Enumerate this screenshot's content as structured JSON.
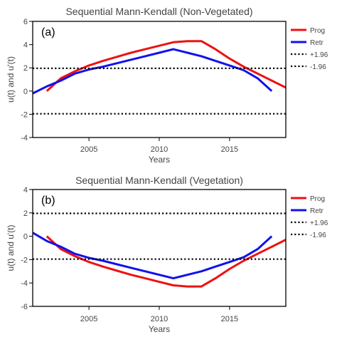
{
  "chart_data": [
    {
      "type": "line",
      "title": "Sequential Mann-Kendall (Non-Vegetated)",
      "panel_label": "(a)",
      "xlabel": "Years",
      "ylabel": "u(t) and u'(t)",
      "xlim": [
        2001,
        2019
      ],
      "ylim": [
        -4,
        6
      ],
      "xticks": [
        2005,
        2010,
        2015
      ],
      "yticks": [
        -4,
        -2,
        0,
        2,
        4,
        6
      ],
      "legend_position": "right",
      "series": [
        {
          "name": "Prog",
          "color": "#ee1111",
          "style": "solid",
          "x": [
            2002,
            2003,
            2004,
            2005,
            2006,
            2007,
            2008,
            2009,
            2010,
            2011,
            2012,
            2013,
            2014,
            2015,
            2016,
            2017,
            2018,
            2019
          ],
          "y": [
            0.0,
            1.1,
            1.7,
            2.2,
            2.6,
            2.95,
            3.3,
            3.6,
            3.9,
            4.2,
            4.3,
            4.3,
            3.6,
            2.8,
            2.1,
            1.5,
            0.9,
            0.3
          ]
        },
        {
          "name": "Retr",
          "color": "#1111ee",
          "style": "solid",
          "x": [
            2001,
            2002,
            2003,
            2004,
            2005,
            2006,
            2007,
            2008,
            2009,
            2010,
            2011,
            2012,
            2013,
            2014,
            2015,
            2016,
            2017,
            2018
          ],
          "y": [
            -0.2,
            0.4,
            0.9,
            1.5,
            1.85,
            2.1,
            2.4,
            2.7,
            3.0,
            3.3,
            3.6,
            3.3,
            3.0,
            2.6,
            2.2,
            1.8,
            1.1,
            0.0
          ]
        },
        {
          "name": "+1.96",
          "color": "#000000",
          "style": "dotted",
          "x": [
            2001,
            2019
          ],
          "y": [
            1.96,
            1.96
          ]
        },
        {
          "name": "-1.96",
          "color": "#000000",
          "style": "dotted",
          "x": [
            2001,
            2019
          ],
          "y": [
            -1.96,
            -1.96
          ]
        }
      ]
    },
    {
      "type": "line",
      "title": "Sequential Mann-Kendall (Vegetation)",
      "panel_label": "(b)",
      "xlabel": "Years",
      "ylabel": "u(t) and u'(t)",
      "xlim": [
        2001,
        2019
      ],
      "ylim": [
        -6,
        4
      ],
      "xticks": [
        2005,
        2010,
        2015
      ],
      "yticks": [
        -6,
        -4,
        -2,
        0,
        2,
        4
      ],
      "legend_position": "right",
      "series": [
        {
          "name": "Prog",
          "color": "#ee1111",
          "style": "solid",
          "x": [
            2002,
            2003,
            2004,
            2005,
            2006,
            2007,
            2008,
            2009,
            2010,
            2011,
            2012,
            2013,
            2014,
            2015,
            2016,
            2017,
            2018,
            2019
          ],
          "y": [
            0.0,
            -1.1,
            -1.7,
            -2.2,
            -2.6,
            -2.95,
            -3.3,
            -3.6,
            -3.9,
            -4.2,
            -4.3,
            -4.3,
            -3.6,
            -2.8,
            -2.1,
            -1.5,
            -0.9,
            -0.3
          ]
        },
        {
          "name": "Retr",
          "color": "#1111ee",
          "style": "solid",
          "x": [
            2001,
            2002,
            2003,
            2004,
            2005,
            2006,
            2007,
            2008,
            2009,
            2010,
            2011,
            2012,
            2013,
            2014,
            2015,
            2016,
            2017,
            2018
          ],
          "y": [
            0.3,
            -0.4,
            -0.9,
            -1.5,
            -1.85,
            -2.1,
            -2.4,
            -2.7,
            -3.0,
            -3.3,
            -3.6,
            -3.3,
            -3.0,
            -2.6,
            -2.2,
            -1.8,
            -1.1,
            0.0
          ]
        },
        {
          "name": "+1.96",
          "color": "#000000",
          "style": "dotted",
          "x": [
            2001,
            2019
          ],
          "y": [
            1.96,
            1.96
          ]
        },
        {
          "name": "-1.96",
          "color": "#000000",
          "style": "dotted",
          "x": [
            2001,
            2019
          ],
          "y": [
            -1.96,
            -1.96
          ]
        }
      ]
    }
  ]
}
